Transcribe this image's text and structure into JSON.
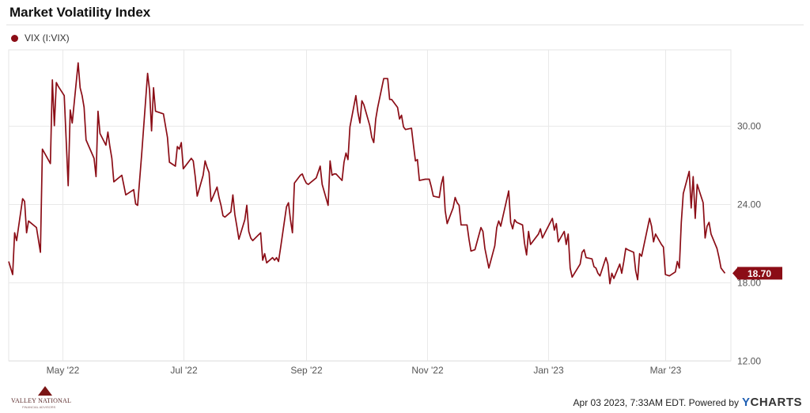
{
  "chart_data": {
    "type": "line",
    "title": "Market Volatility Index",
    "series": [
      {
        "name": "VIX (I:VIX)",
        "color": "#8b0d16",
        "current_label": "18.70",
        "points": [
          [
            "2022-04-04",
            19.6
          ],
          [
            "2022-04-06",
            18.6
          ],
          [
            "2022-04-07",
            21.8
          ],
          [
            "2022-04-08",
            21.2
          ],
          [
            "2022-04-11",
            24.4
          ],
          [
            "2022-04-12",
            24.2
          ],
          [
            "2022-04-13",
            21.8
          ],
          [
            "2022-04-14",
            22.7
          ],
          [
            "2022-04-18",
            22.2
          ],
          [
            "2022-04-20",
            20.3
          ],
          [
            "2022-04-21",
            28.2
          ],
          [
            "2022-04-25",
            27.1
          ],
          [
            "2022-04-26",
            33.5
          ],
          [
            "2022-04-27",
            30.0
          ],
          [
            "2022-04-28",
            33.3
          ],
          [
            "2022-04-29",
            33.0
          ],
          [
            "2022-05-02",
            32.3
          ],
          [
            "2022-05-04",
            25.4
          ],
          [
            "2022-05-05",
            31.2
          ],
          [
            "2022-05-06",
            30.2
          ],
          [
            "2022-05-09",
            34.8
          ],
          [
            "2022-05-10",
            32.9
          ],
          [
            "2022-05-11",
            32.3
          ],
          [
            "2022-05-12",
            31.4
          ],
          [
            "2022-05-13",
            28.9
          ],
          [
            "2022-05-17",
            27.5
          ],
          [
            "2022-05-18",
            26.1
          ],
          [
            "2022-05-19",
            31.1
          ],
          [
            "2022-05-20",
            29.4
          ],
          [
            "2022-05-23",
            28.5
          ],
          [
            "2022-05-24",
            29.5
          ],
          [
            "2022-05-25",
            28.4
          ],
          [
            "2022-05-26",
            27.5
          ],
          [
            "2022-05-27",
            25.7
          ],
          [
            "2022-05-31",
            26.2
          ],
          [
            "2022-06-02",
            24.7
          ],
          [
            "2022-06-06",
            25.1
          ],
          [
            "2022-06-07",
            24.0
          ],
          [
            "2022-06-08",
            23.9
          ],
          [
            "2022-06-10",
            27.8
          ],
          [
            "2022-06-13",
            34.0
          ],
          [
            "2022-06-14",
            32.7
          ],
          [
            "2022-06-15",
            29.6
          ],
          [
            "2022-06-16",
            32.9
          ],
          [
            "2022-06-17",
            31.1
          ],
          [
            "2022-06-21",
            30.9
          ],
          [
            "2022-06-23",
            29.1
          ],
          [
            "2022-06-24",
            27.2
          ],
          [
            "2022-06-27",
            26.9
          ],
          [
            "2022-06-28",
            28.4
          ],
          [
            "2022-06-29",
            28.2
          ],
          [
            "2022-06-30",
            28.7
          ],
          [
            "2022-07-01",
            26.7
          ],
          [
            "2022-07-05",
            27.5
          ],
          [
            "2022-07-06",
            27.3
          ],
          [
            "2022-07-07",
            26.1
          ],
          [
            "2022-07-08",
            24.6
          ],
          [
            "2022-07-11",
            26.2
          ],
          [
            "2022-07-12",
            27.3
          ],
          [
            "2022-07-13",
            26.8
          ],
          [
            "2022-07-14",
            26.4
          ],
          [
            "2022-07-15",
            24.2
          ],
          [
            "2022-07-18",
            25.3
          ],
          [
            "2022-07-19",
            24.5
          ],
          [
            "2022-07-20",
            23.9
          ],
          [
            "2022-07-21",
            23.1
          ],
          [
            "2022-07-22",
            23.0
          ],
          [
            "2022-07-25",
            23.4
          ],
          [
            "2022-07-26",
            24.7
          ],
          [
            "2022-07-27",
            23.2
          ],
          [
            "2022-07-28",
            22.3
          ],
          [
            "2022-07-29",
            21.3
          ],
          [
            "2022-08-01",
            22.8
          ],
          [
            "2022-08-02",
            23.9
          ],
          [
            "2022-08-03",
            21.9
          ],
          [
            "2022-08-04",
            21.4
          ],
          [
            "2022-08-05",
            21.2
          ],
          [
            "2022-08-09",
            21.8
          ],
          [
            "2022-08-10",
            19.7
          ],
          [
            "2022-08-11",
            20.2
          ],
          [
            "2022-08-12",
            19.5
          ],
          [
            "2022-08-15",
            19.9
          ],
          [
            "2022-08-16",
            19.7
          ],
          [
            "2022-08-17",
            19.9
          ],
          [
            "2022-08-18",
            19.6
          ],
          [
            "2022-08-19",
            20.6
          ],
          [
            "2022-08-22",
            23.8
          ],
          [
            "2022-08-23",
            24.1
          ],
          [
            "2022-08-24",
            22.8
          ],
          [
            "2022-08-25",
            21.8
          ],
          [
            "2022-08-26",
            25.6
          ],
          [
            "2022-08-29",
            26.2
          ],
          [
            "2022-08-30",
            26.3
          ],
          [
            "2022-08-31",
            25.9
          ],
          [
            "2022-09-01",
            25.6
          ],
          [
            "2022-09-02",
            25.5
          ],
          [
            "2022-09-06",
            26.0
          ],
          [
            "2022-09-08",
            26.9
          ],
          [
            "2022-09-09",
            25.5
          ],
          [
            "2022-09-12",
            23.9
          ],
          [
            "2022-09-13",
            27.3
          ],
          [
            "2022-09-14",
            26.2
          ],
          [
            "2022-09-15",
            26.3
          ],
          [
            "2022-09-16",
            26.3
          ],
          [
            "2022-09-19",
            25.8
          ],
          [
            "2022-09-20",
            27.2
          ],
          [
            "2022-09-21",
            27.9
          ],
          [
            "2022-09-22",
            27.4
          ],
          [
            "2022-09-23",
            29.9
          ],
          [
            "2022-09-26",
            32.3
          ],
          [
            "2022-09-27",
            31.0
          ],
          [
            "2022-09-28",
            30.2
          ],
          [
            "2022-09-29",
            31.9
          ],
          [
            "2022-09-30",
            31.6
          ],
          [
            "2022-10-03",
            30.0
          ],
          [
            "2022-10-04",
            29.1
          ],
          [
            "2022-10-05",
            28.7
          ],
          [
            "2022-10-06",
            30.5
          ],
          [
            "2022-10-07",
            31.4
          ],
          [
            "2022-10-10",
            33.6
          ],
          [
            "2022-10-11",
            33.6
          ],
          [
            "2022-10-12",
            33.6
          ],
          [
            "2022-10-13",
            32.0
          ],
          [
            "2022-10-14",
            32.0
          ],
          [
            "2022-10-17",
            31.4
          ],
          [
            "2022-10-18",
            30.5
          ],
          [
            "2022-10-19",
            30.8
          ],
          [
            "2022-10-20",
            29.9
          ],
          [
            "2022-10-21",
            29.7
          ],
          [
            "2022-10-24",
            29.8
          ],
          [
            "2022-10-25",
            28.5
          ],
          [
            "2022-10-26",
            27.3
          ],
          [
            "2022-10-27",
            27.4
          ],
          [
            "2022-10-28",
            25.8
          ],
          [
            "2022-10-31",
            25.9
          ],
          [
            "2022-11-02",
            25.9
          ],
          [
            "2022-11-03",
            25.3
          ],
          [
            "2022-11-04",
            24.6
          ],
          [
            "2022-11-07",
            24.5
          ],
          [
            "2022-11-08",
            25.5
          ],
          [
            "2022-11-09",
            26.1
          ],
          [
            "2022-11-10",
            23.5
          ],
          [
            "2022-11-11",
            22.5
          ],
          [
            "2022-11-14",
            23.7
          ],
          [
            "2022-11-15",
            24.5
          ],
          [
            "2022-11-16",
            24.1
          ],
          [
            "2022-11-17",
            23.9
          ],
          [
            "2022-11-18",
            22.4
          ],
          [
            "2022-11-21",
            22.4
          ],
          [
            "2022-11-22",
            21.3
          ],
          [
            "2022-11-23",
            20.4
          ],
          [
            "2022-11-25",
            20.5
          ],
          [
            "2022-11-28",
            22.2
          ],
          [
            "2022-11-29",
            21.9
          ],
          [
            "2022-11-30",
            20.6
          ],
          [
            "2022-12-02",
            19.1
          ],
          [
            "2022-12-05",
            20.8
          ],
          [
            "2022-12-06",
            22.2
          ],
          [
            "2022-12-07",
            22.7
          ],
          [
            "2022-12-08",
            22.3
          ],
          [
            "2022-12-09",
            23.0
          ],
          [
            "2022-12-12",
            25.0
          ],
          [
            "2022-12-13",
            22.6
          ],
          [
            "2022-12-14",
            22.1
          ],
          [
            "2022-12-15",
            22.8
          ],
          [
            "2022-12-16",
            22.6
          ],
          [
            "2022-12-19",
            22.4
          ],
          [
            "2022-12-20",
            21.0
          ],
          [
            "2022-12-21",
            20.1
          ],
          [
            "2022-12-22",
            21.9
          ],
          [
            "2022-12-23",
            20.9
          ],
          [
            "2022-12-27",
            21.7
          ],
          [
            "2022-12-28",
            22.1
          ],
          [
            "2022-12-29",
            21.4
          ],
          [
            "2022-12-30",
            21.7
          ],
          [
            "2023-01-03",
            22.9
          ],
          [
            "2023-01-04",
            22.0
          ],
          [
            "2023-01-05",
            22.5
          ],
          [
            "2023-01-06",
            21.1
          ],
          [
            "2023-01-09",
            21.9
          ],
          [
            "2023-01-10",
            20.9
          ],
          [
            "2023-01-11",
            21.7
          ],
          [
            "2023-01-12",
            19.1
          ],
          [
            "2023-01-13",
            18.4
          ],
          [
            "2023-01-17",
            19.4
          ],
          [
            "2023-01-18",
            20.3
          ],
          [
            "2023-01-19",
            20.5
          ],
          [
            "2023-01-20",
            19.9
          ],
          [
            "2023-01-23",
            19.8
          ],
          [
            "2023-01-24",
            19.2
          ],
          [
            "2023-01-25",
            19.1
          ],
          [
            "2023-01-26",
            18.7
          ],
          [
            "2023-01-27",
            18.5
          ],
          [
            "2023-01-30",
            19.9
          ],
          [
            "2023-01-31",
            19.4
          ],
          [
            "2023-02-01",
            17.9
          ],
          [
            "2023-02-02",
            18.7
          ],
          [
            "2023-02-03",
            18.3
          ],
          [
            "2023-02-06",
            19.4
          ],
          [
            "2023-02-07",
            18.7
          ],
          [
            "2023-02-08",
            19.6
          ],
          [
            "2023-02-09",
            20.6
          ],
          [
            "2023-02-10",
            20.5
          ],
          [
            "2023-02-13",
            20.3
          ],
          [
            "2023-02-14",
            18.9
          ],
          [
            "2023-02-15",
            18.2
          ],
          [
            "2023-02-16",
            20.2
          ],
          [
            "2023-02-17",
            20.0
          ],
          [
            "2023-02-21",
            22.9
          ],
          [
            "2023-02-22",
            22.3
          ],
          [
            "2023-02-23",
            21.1
          ],
          [
            "2023-02-24",
            21.7
          ],
          [
            "2023-02-27",
            20.9
          ],
          [
            "2023-02-28",
            20.7
          ],
          [
            "2023-03-01",
            18.6
          ],
          [
            "2023-03-03",
            18.5
          ],
          [
            "2023-03-06",
            18.8
          ],
          [
            "2023-03-07",
            19.6
          ],
          [
            "2023-03-08",
            19.1
          ],
          [
            "2023-03-09",
            22.6
          ],
          [
            "2023-03-10",
            24.8
          ],
          [
            "2023-03-13",
            26.5
          ],
          [
            "2023-03-14",
            23.7
          ],
          [
            "2023-03-15",
            26.1
          ],
          [
            "2023-03-16",
            22.9
          ],
          [
            "2023-03-17",
            25.5
          ],
          [
            "2023-03-20",
            24.1
          ],
          [
            "2023-03-21",
            21.4
          ],
          [
            "2023-03-22",
            22.3
          ],
          [
            "2023-03-23",
            22.6
          ],
          [
            "2023-03-24",
            21.7
          ],
          [
            "2023-03-27",
            20.6
          ],
          [
            "2023-03-28",
            19.9
          ],
          [
            "2023-03-29",
            19.1
          ],
          [
            "2023-03-30",
            18.9
          ],
          [
            "2023-03-31",
            18.7
          ]
        ]
      }
    ],
    "x_ticks": [
      {
        "date": "2022-05-01",
        "label": "May '22"
      },
      {
        "date": "2022-07-01",
        "label": "Jul '22"
      },
      {
        "date": "2022-09-01",
        "label": "Sep '22"
      },
      {
        "date": "2022-11-01",
        "label": "Nov '22"
      },
      {
        "date": "2023-01-01",
        "label": "Jan '23"
      },
      {
        "date": "2023-03-01",
        "label": "Mar '23"
      }
    ],
    "y_ticks": [
      {
        "value": 12,
        "label": "12.00"
      },
      {
        "value": 18,
        "label": "18.00"
      },
      {
        "value": 24,
        "label": "24.00"
      },
      {
        "value": 30,
        "label": "30.00"
      }
    ],
    "xlim": [
      "2022-04-04",
      "2023-04-03"
    ],
    "ylim": [
      12,
      35.8
    ],
    "grid": true,
    "legend_position": "top-left"
  },
  "footer": {
    "logo_text": "VALLEY NATIONAL",
    "logo_sub": "FINANCIAL ADVISORS",
    "timestamp": "Apr 03 2023, 7:33AM EDT. Powered by",
    "brand_y": "Y",
    "brand_rest": "CHARTS"
  }
}
